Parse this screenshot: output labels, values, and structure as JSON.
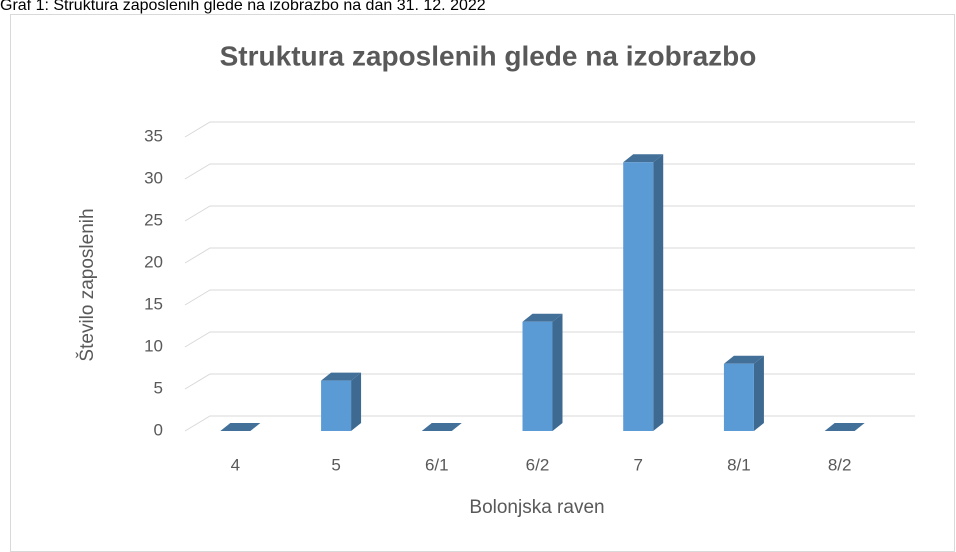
{
  "caption": "Graf 1: Struktura zaposlenih glede na izobrazbo na dan 31. 12. 2022",
  "chart_data": {
    "type": "bar3d",
    "title": "Struktura zaposlenih glede na izobrazbo",
    "x_label": "Bolonjska raven",
    "y_label": "Število zaposlenih",
    "categories": [
      "4",
      "5",
      "6/1",
      "6/2",
      "7",
      "8/1",
      "8/2"
    ],
    "values": [
      0,
      6,
      0,
      13,
      32,
      8,
      0
    ],
    "color": "#5b9bd5",
    "ylim": [
      0,
      35
    ],
    "yticks": [
      0,
      5,
      10,
      15,
      20,
      25,
      30,
      35
    ],
    "grid": true
  }
}
